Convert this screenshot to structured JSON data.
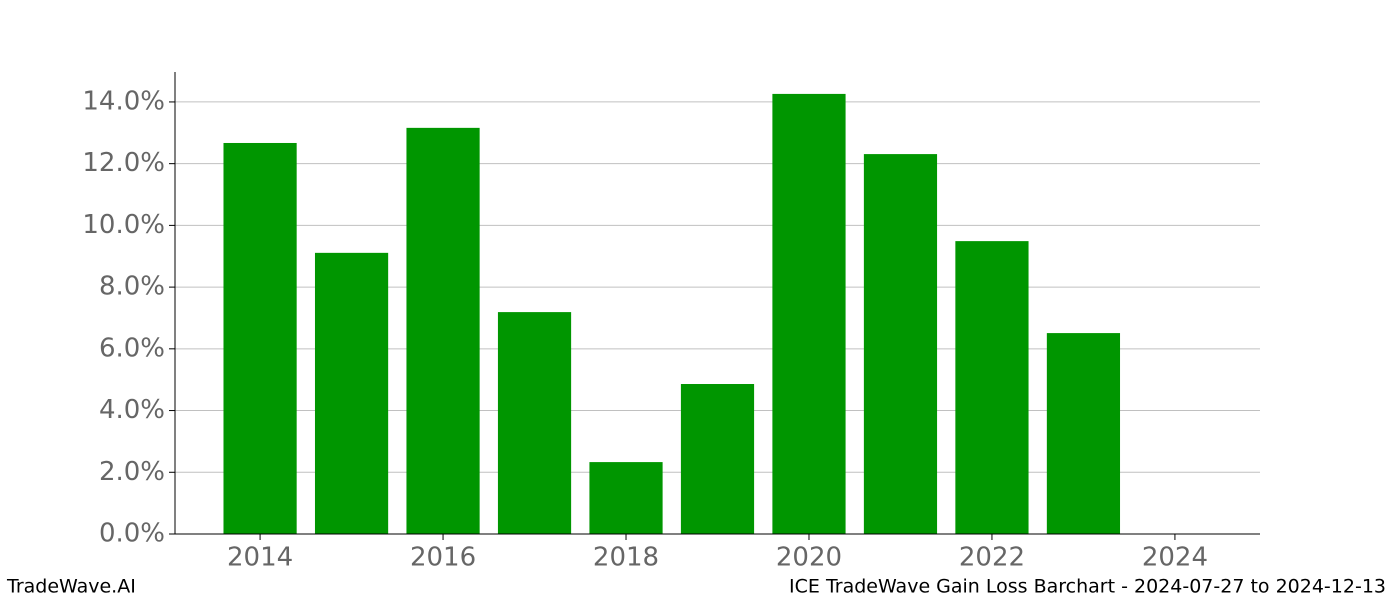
{
  "chart_data": {
    "type": "bar",
    "x": [
      2014,
      2015,
      2016,
      2017,
      2018,
      2019,
      2020,
      2021,
      2022,
      2023
    ],
    "values": [
      12.67,
      9.11,
      13.16,
      7.19,
      2.33,
      4.86,
      14.26,
      12.31,
      9.49,
      6.51
    ],
    "color": "#009600",
    "xlim": [
      2013.07,
      2024.93
    ],
    "xticks": [
      2014,
      2016,
      2018,
      2020,
      2022,
      2024
    ],
    "ylim": [
      0,
      14.97
    ],
    "yticks": [
      {
        "value": 0,
        "label": "0.0%"
      },
      {
        "value": 2,
        "label": "2.0%"
      },
      {
        "value": 4,
        "label": "4.0%"
      },
      {
        "value": 6,
        "label": "6.0%"
      },
      {
        "value": 8,
        "label": "8.0%"
      },
      {
        "value": 10,
        "label": "10.0%"
      },
      {
        "value": 12,
        "label": "12.0%"
      },
      {
        "value": 14,
        "label": "14.0%"
      }
    ],
    "grid": true,
    "footer_left": "TradeWave.AI",
    "footer_right": "ICE TradeWave Gain Loss Barchart - 2024-07-27 to 2024-12-13"
  }
}
